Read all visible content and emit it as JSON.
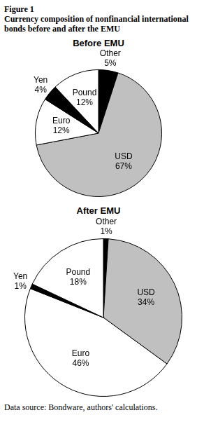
{
  "header": {
    "figure": "Figure 1",
    "title": "Currency composition of nonfinancial international bonds before and after the EMU"
  },
  "chart_data": [
    {
      "type": "pie",
      "title": "Before EMU",
      "categories": [
        "Other",
        "USD",
        "Euro",
        "Yen",
        "Pound"
      ],
      "values": [
        5,
        67,
        12,
        4,
        12
      ],
      "value_labels": [
        "5%",
        "67%",
        "12%",
        "4%",
        "12%"
      ],
      "colors": [
        "#000000",
        "#c0c0c0",
        "#ffffff",
        "#000000",
        "#ffffff"
      ],
      "data_labels": true
    },
    {
      "type": "pie",
      "title": "After EMU",
      "categories": [
        "Other",
        "USD",
        "Euro",
        "Yen",
        "Pound"
      ],
      "values": [
        1,
        34,
        46,
        1,
        18
      ],
      "value_labels": [
        "1%",
        "34%",
        "46%",
        "1%",
        "18%"
      ],
      "colors": [
        "#000000",
        "#c0c0c0",
        "#ffffff",
        "#000000",
        "#ffffff"
      ],
      "data_labels": true
    }
  ],
  "footer": {
    "source": "Data source: Bondware, authors' calculations."
  }
}
